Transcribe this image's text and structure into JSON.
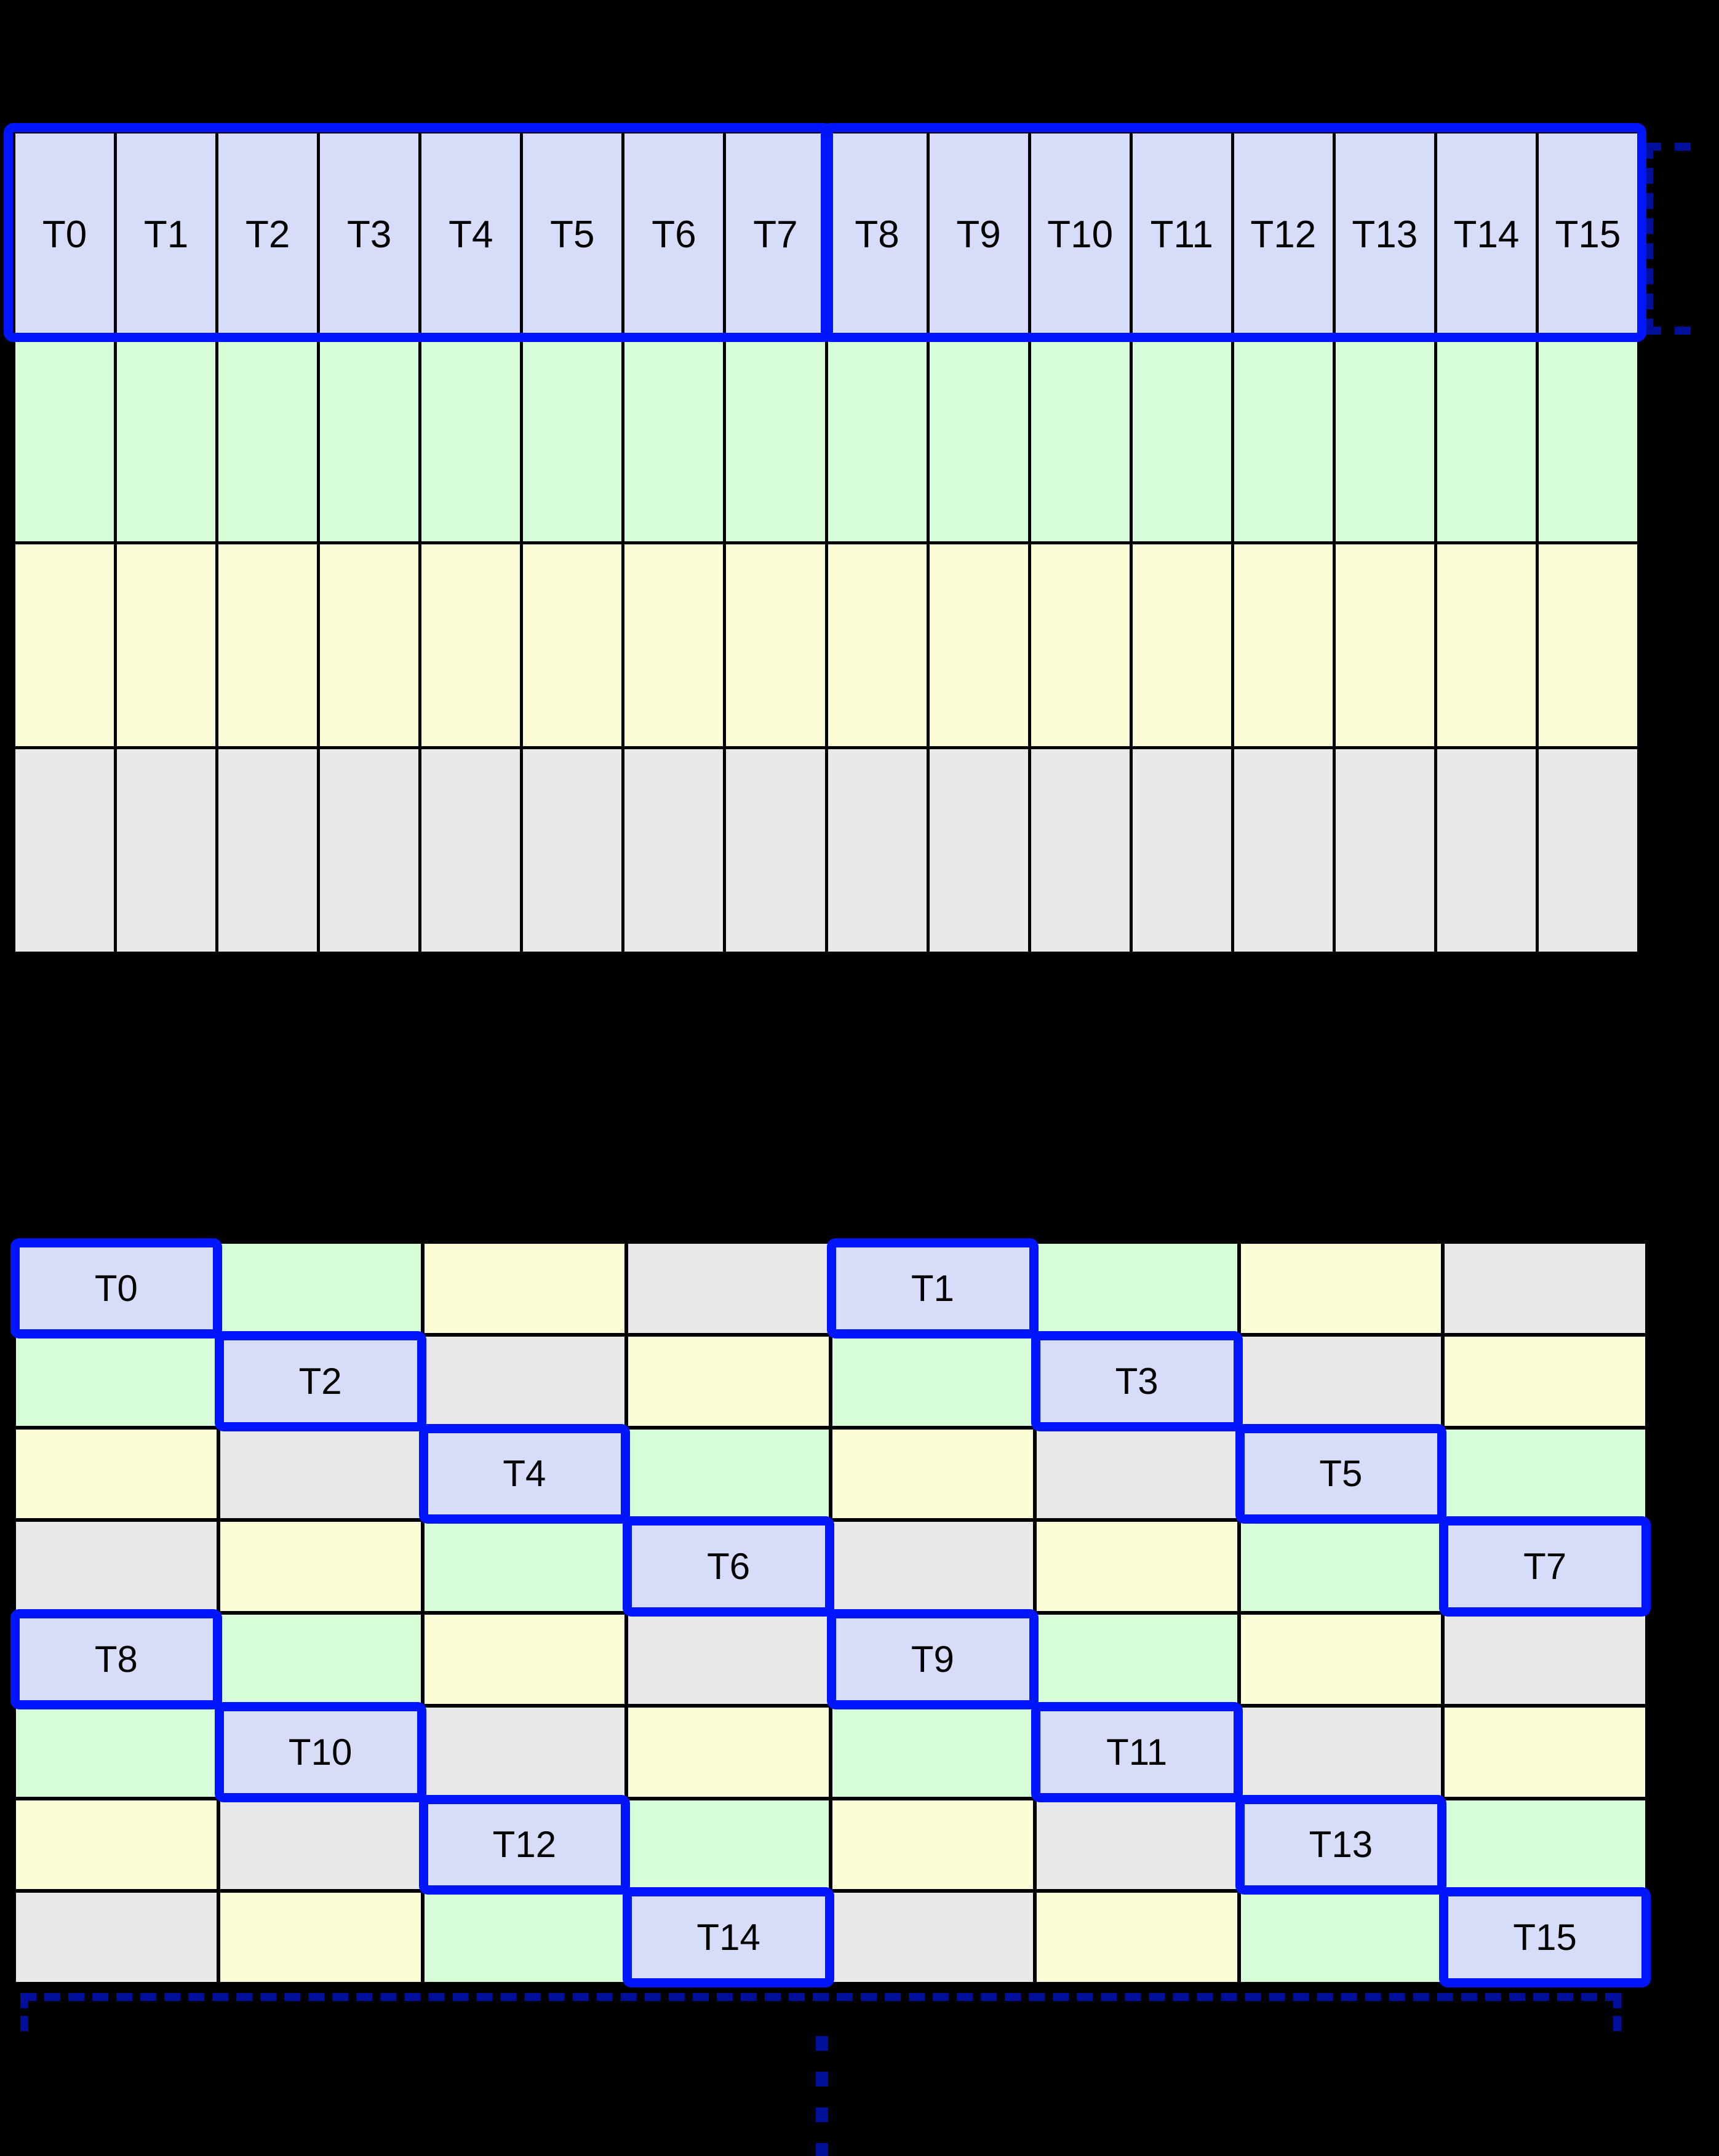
{
  "figure": {
    "colors": {
      "background": "#000000",
      "grid_line": "#000000",
      "thread_fill": "#d7dcf8",
      "green_fill": "#d6fdd8",
      "yellow_fill": "#fcfdd7",
      "gray_fill": "#e8e8e9",
      "highlight_border": "#0015ff",
      "bracket_color": "#000f99",
      "label_text": "#000000"
    },
    "cell_color_legend": {
      "T": "thread",
      "g": "green",
      "y": "yellow",
      "G": "gray"
    },
    "top_grid": {
      "rows": 4,
      "cols": 16,
      "row_fills": [
        "T",
        "g",
        "y",
        "G"
      ],
      "thread_labels": [
        "T0",
        "T1",
        "T2",
        "T3",
        "T4",
        "T5",
        "T6",
        "T7",
        "T8",
        "T9",
        "T10",
        "T11",
        "T12",
        "T13",
        "T14",
        "T15"
      ],
      "warp_groups": [
        {
          "first": "T0",
          "last": "T7"
        },
        {
          "first": "T8",
          "last": "T15"
        }
      ]
    },
    "bottom_grid": {
      "rows": 8,
      "cols": 8,
      "row_patterns": [
        "TgyGTgyG",
        "gTGygTGy",
        "yGTgyGTg",
        "GygTGygT",
        "TgyGTgyG",
        "gTGygTGy",
        "yGTgyGTg",
        "GygTGygT"
      ],
      "thread_labels": [
        {
          "label": "T0",
          "row": 0,
          "col": 0
        },
        {
          "label": "T1",
          "row": 0,
          "col": 4
        },
        {
          "label": "T2",
          "row": 1,
          "col": 1
        },
        {
          "label": "T3",
          "row": 1,
          "col": 5
        },
        {
          "label": "T4",
          "row": 2,
          "col": 2
        },
        {
          "label": "T5",
          "row": 2,
          "col": 6
        },
        {
          "label": "T6",
          "row": 3,
          "col": 3
        },
        {
          "label": "T7",
          "row": 3,
          "col": 7
        },
        {
          "label": "T8",
          "row": 4,
          "col": 0
        },
        {
          "label": "T9",
          "row": 4,
          "col": 4
        },
        {
          "label": "T10",
          "row": 5,
          "col": 1
        },
        {
          "label": "T11",
          "row": 5,
          "col": 5
        },
        {
          "label": "T12",
          "row": 6,
          "col": 2
        },
        {
          "label": "T13",
          "row": 6,
          "col": 6
        },
        {
          "label": "T14",
          "row": 7,
          "col": 3
        },
        {
          "label": "T15",
          "row": 7,
          "col": 7
        }
      ],
      "ellipsis_dot_count": 4
    }
  }
}
